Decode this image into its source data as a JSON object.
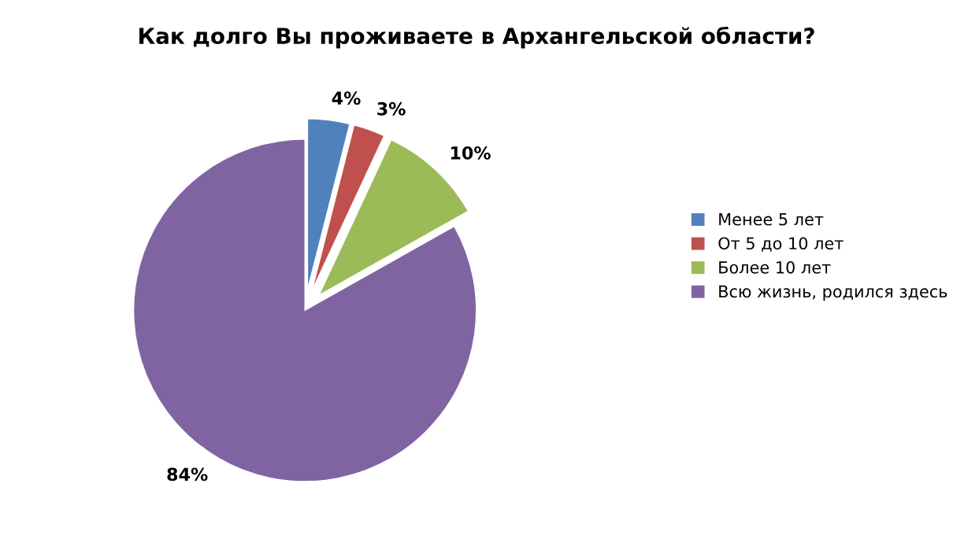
{
  "chart_data": {
    "type": "pie",
    "title": "Как долго Вы проживаете в Архангельской области?",
    "categories": [
      "Менее 5 лет",
      "От 5 до 10 лет",
      "Более 10 лет",
      "Всю жизнь, родился здесь"
    ],
    "values": [
      4,
      3,
      10,
      84
    ],
    "value_labels": [
      "4%",
      "3%",
      "10%",
      "84%"
    ],
    "colors": [
      "#4f81bd",
      "#c0504d",
      "#9bbb59",
      "#8064a2"
    ],
    "legend": "right"
  }
}
